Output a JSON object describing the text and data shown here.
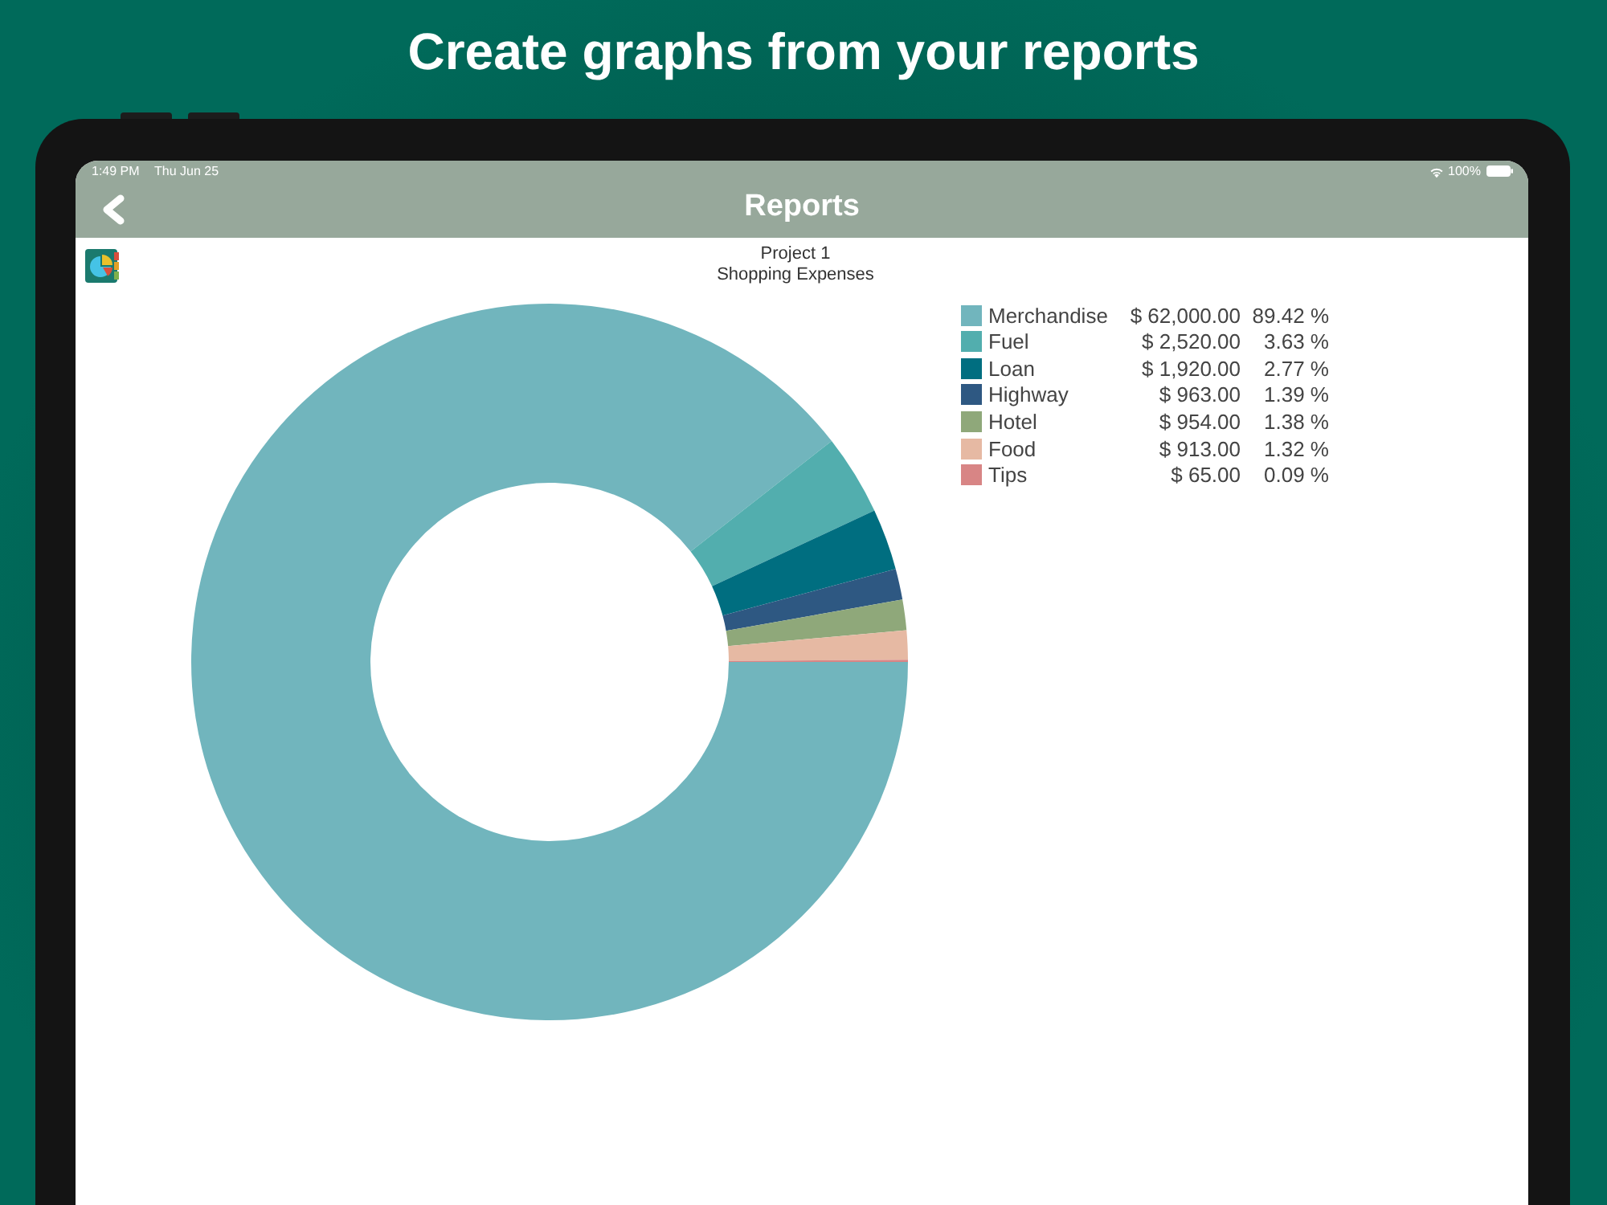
{
  "chart_data": {
    "type": "donut",
    "title": "Project 1",
    "subtitle": "Shopping Expenses",
    "categories": [
      "Merchandise",
      "Fuel",
      "Loan",
      "Highway",
      "Hotel",
      "Food",
      "Tips"
    ],
    "values": [
      62000,
      2520,
      1920,
      963,
      954,
      913,
      65
    ],
    "colors": [
      "#71b5bd",
      "#52aeae",
      "#006e80",
      "#2e5882",
      "#8fa87a",
      "#e6b9a3",
      "#d88585"
    ],
    "value_labels": [
      "$ 62,000.00",
      "$ 2,520.00",
      "$ 1,920.00",
      "$ 963.00",
      "$ 954.00",
      "$ 913.00",
      "$ 65.00"
    ],
    "legend": "top right",
    "annotations": [
      "Create graphs from your reports",
      "1:49 PM",
      "Thu Jun 25",
      "100%",
      "Reports",
      "89.42 %",
      "3.63 %",
      "2.77 %",
      "1.39 %",
      "1.38 %",
      "1.32 %",
      "0.09 %"
    ]
  }
}
